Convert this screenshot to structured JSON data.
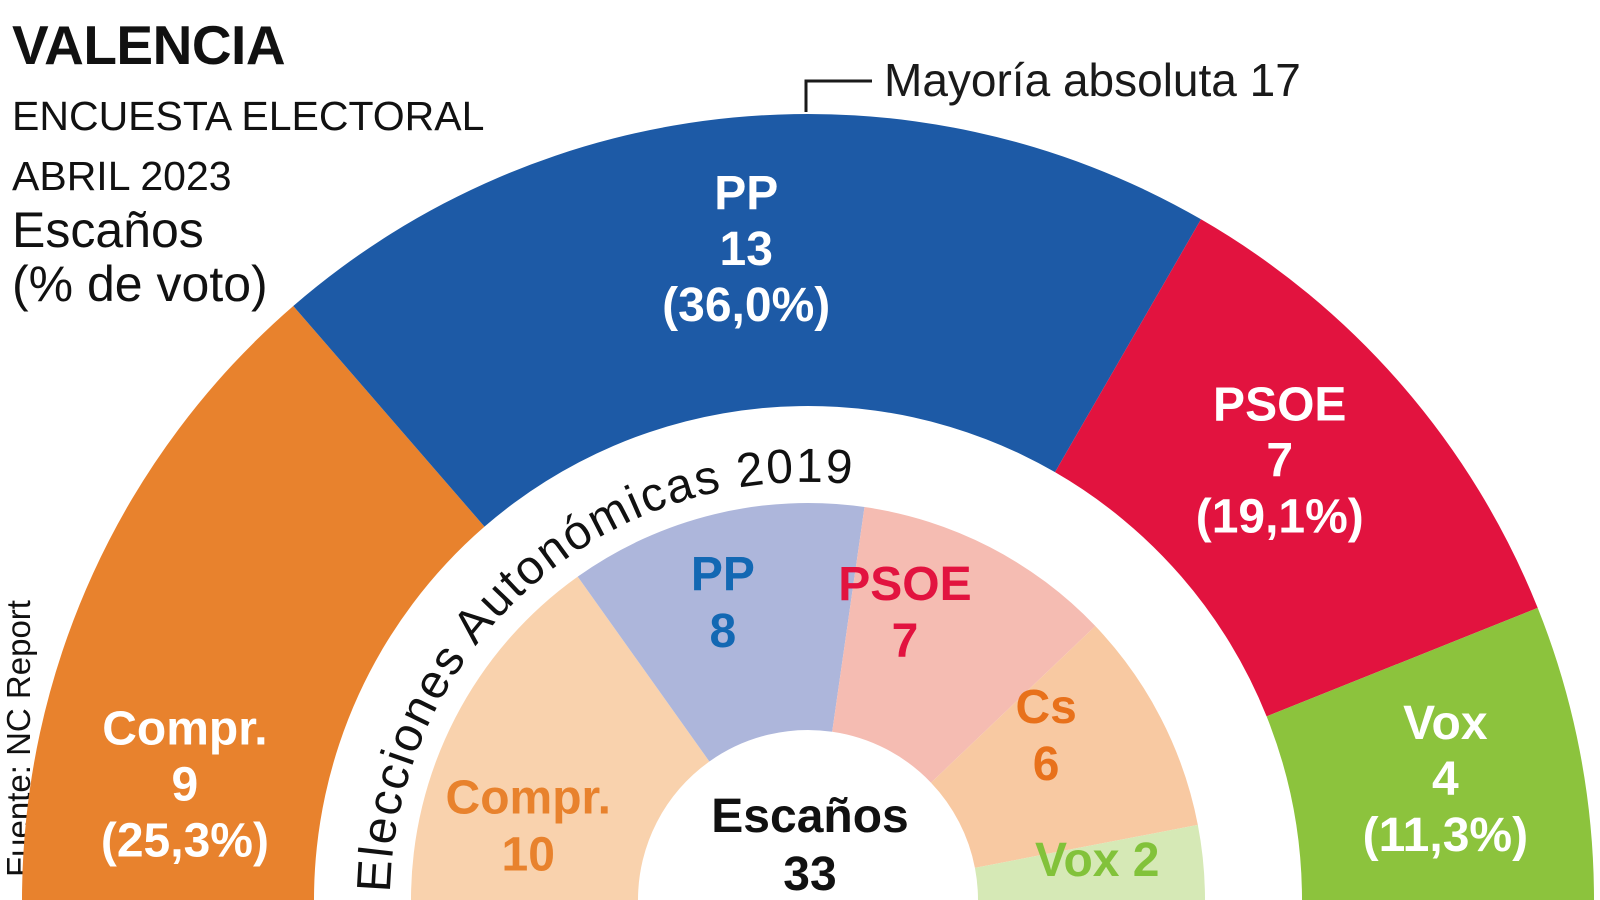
{
  "header": {
    "title": "VALENCIA",
    "subtitle_lines": [
      "ENCUESTA ELECTORAL",
      "ABRIL 2023"
    ],
    "unit_lines": [
      "Escaños",
      "(% de voto)"
    ]
  },
  "source": "Fuente: NC Report",
  "annotation": {
    "label": "Mayoría absoluta 17",
    "majority_seats": 17
  },
  "chart_data": {
    "type": "pie",
    "variant": "half-donut-hemicycle-two-rings",
    "total_seats": 33,
    "center_label": {
      "line1": "Escaños",
      "line2": "33"
    },
    "outer_ring": {
      "name": "Encuesta electoral abril 2023",
      "series": [
        {
          "party": "Compr.",
          "seats": 9,
          "pct_label": "(25,3%)",
          "color": "#e8822d",
          "text_color": "#ffffff"
        },
        {
          "party": "PP",
          "seats": 13,
          "pct_label": "(36,0%)",
          "color": "#1d5aa6",
          "text_color": "#ffffff"
        },
        {
          "party": "PSOE",
          "seats": 7,
          "pct_label": "(19,1%)",
          "color": "#e2133f",
          "text_color": "#ffffff"
        },
        {
          "party": "Vox",
          "seats": 4,
          "pct_label": "(11,3%)",
          "color": "#8cc33d",
          "text_color": "#ffffff"
        }
      ]
    },
    "inner_ring": {
      "name": "Elecciones Autonómicas 2019",
      "series": [
        {
          "party": "Compr.",
          "seats": 10,
          "color": "#f9d2ad",
          "text_color": "#e8822d"
        },
        {
          "party": "PP",
          "seats": 8,
          "color": "#adb6db",
          "text_color": "#1368b3"
        },
        {
          "party": "PSOE",
          "seats": 7,
          "color": "#f5bcb2",
          "text_color": "#e2133f"
        },
        {
          "party": "Cs",
          "seats": 6,
          "color": "#f8c9a2",
          "text_color": "#e8711b"
        },
        {
          "party": "Vox",
          "seats": 2,
          "color": "#d6e9b6",
          "text_color": "#82c23a",
          "inline_label": true
        }
      ]
    }
  }
}
